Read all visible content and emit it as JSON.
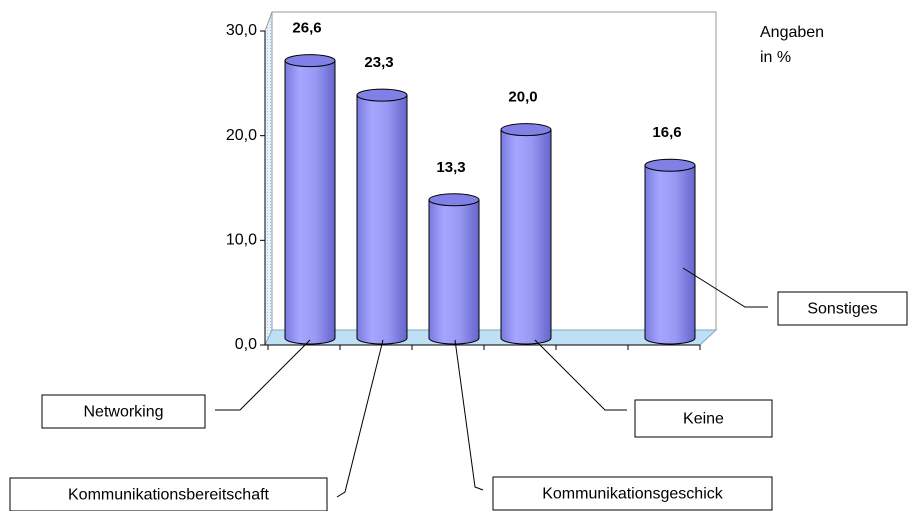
{
  "chart_data": {
    "type": "bar3d",
    "categories": [
      "Networking",
      "Kommunikationsbereitschaft",
      "Kommunikationsgeschick",
      "Keine",
      null,
      "Sonstiges"
    ],
    "values": [
      26.6,
      23.3,
      13.3,
      20.0,
      null,
      16.6
    ],
    "value_labels": [
      "26,6",
      "23,3",
      "13,3",
      "20,0",
      null,
      "16,6"
    ],
    "color": "#9999ff",
    "ylim": [
      0,
      30
    ],
    "yticks": [
      {
        "value": 0,
        "label": "0,0"
      },
      {
        "value": 10,
        "label": "10,0"
      },
      {
        "value": 20,
        "label": "20,0"
      },
      {
        "value": 30,
        "label": "30,0"
      }
    ],
    "annotation": [
      "Angaben",
      "in %"
    ]
  }
}
